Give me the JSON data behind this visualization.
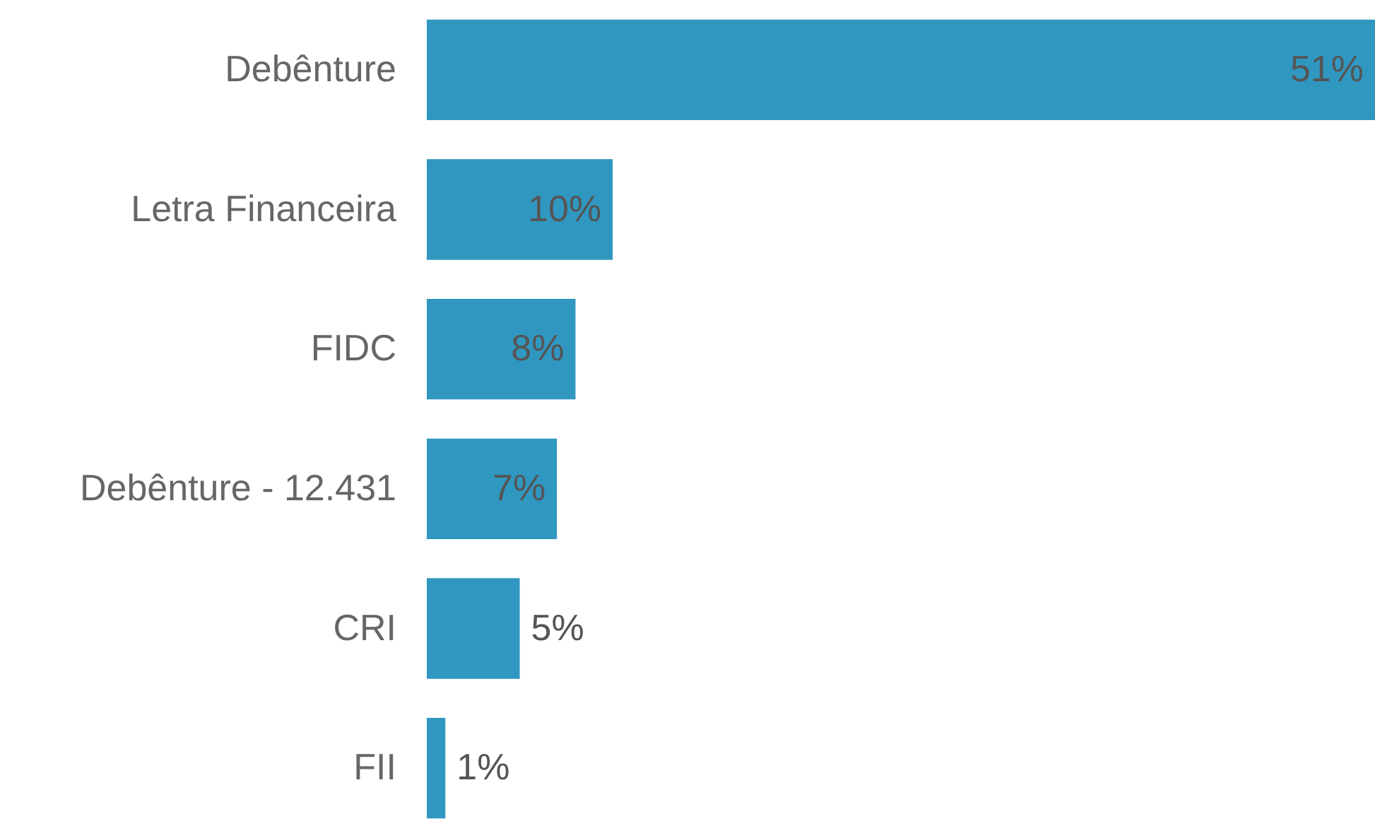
{
  "chart_data": {
    "type": "bar",
    "orientation": "horizontal",
    "categories": [
      "Debênture",
      "Letra Financeira",
      "FIDC",
      "Debênture - 12.431",
      "CRI",
      "FII"
    ],
    "values": [
      51,
      10,
      8,
      7,
      5,
      1
    ],
    "color": "#3097c1",
    "value_labels": [
      "51%",
      "10%",
      "8%",
      "7%",
      "5%",
      "1%"
    ]
  }
}
